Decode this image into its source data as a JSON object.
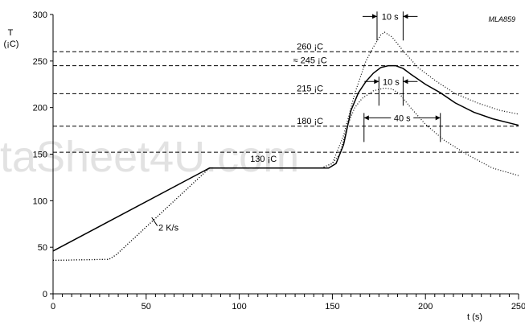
{
  "watermark": "taSheet4U.com",
  "chart_data": {
    "type": "line",
    "code": "MLA859",
    "ylabel": "T",
    "yunit": "(¡C)",
    "xlabel": "t (s)",
    "xlim": [
      0,
      250
    ],
    "ylim": [
      0,
      300
    ],
    "x_ticks": [
      0,
      50,
      100,
      150,
      200,
      250
    ],
    "y_ticks": [
      0,
      50,
      100,
      150,
      200,
      250,
      300
    ],
    "x_minor_step": 5,
    "series": [
      {
        "style": "solid",
        "points": [
          [
            0,
            46
          ],
          [
            84,
            135
          ],
          [
            148,
            135
          ],
          [
            152,
            140
          ],
          [
            156,
            160
          ],
          [
            160,
            197
          ],
          [
            164,
            216
          ],
          [
            168,
            228
          ],
          [
            172,
            237
          ],
          [
            176,
            243
          ],
          [
            180,
            245
          ],
          [
            184,
            245
          ],
          [
            188,
            242
          ],
          [
            192,
            236
          ],
          [
            200,
            225
          ],
          [
            208,
            216
          ],
          [
            216,
            205
          ],
          [
            226,
            195
          ],
          [
            236,
            188
          ],
          [
            250,
            181
          ]
        ]
      },
      {
        "style": "dotted",
        "points": [
          [
            0,
            36
          ],
          [
            30,
            37
          ],
          [
            34,
            42
          ],
          [
            84,
            135
          ],
          [
            144,
            135
          ],
          [
            150,
            140
          ],
          [
            156,
            170
          ],
          [
            162,
            215
          ],
          [
            168,
            250
          ],
          [
            172,
            265
          ],
          [
            176,
            278
          ],
          [
            178,
            281
          ],
          [
            182,
            276
          ],
          [
            188,
            261
          ],
          [
            196,
            243
          ],
          [
            206,
            228
          ],
          [
            216,
            215
          ],
          [
            228,
            205
          ],
          [
            240,
            197
          ],
          [
            250,
            193
          ]
        ]
      },
      {
        "style": "dotted",
        "points": [
          [
            0,
            36
          ],
          [
            30,
            37
          ],
          [
            34,
            42
          ],
          [
            84,
            135
          ],
          [
            144,
            135
          ],
          [
            150,
            140
          ],
          [
            154,
            150
          ],
          [
            158,
            180
          ],
          [
            162,
            200
          ],
          [
            166,
            210
          ],
          [
            172,
            218
          ],
          [
            178,
            221
          ],
          [
            182,
            220
          ],
          [
            186,
            215
          ],
          [
            192,
            200
          ],
          [
            200,
            182
          ],
          [
            210,
            165
          ],
          [
            222,
            150
          ],
          [
            236,
            135
          ],
          [
            250,
            127
          ]
        ]
      }
    ],
    "reference_lines": [
      {
        "y": 260,
        "label": "260 ¡C"
      },
      {
        "y": 245,
        "label": "≈ 245 ¡C"
      },
      {
        "y": 215,
        "label": "215 ¡C"
      },
      {
        "y": 180,
        "label": "180 ¡C"
      },
      {
        "y": 152,
        "label": ""
      }
    ],
    "annotations": [
      {
        "text": "130 ¡C",
        "x": 113,
        "y": 142
      },
      {
        "text": "2 K/s",
        "x": 62,
        "y": 68
      }
    ],
    "intervals": [
      {
        "label": "10 s",
        "x1": 174,
        "x2": 188,
        "y": 298
      },
      {
        "label": "10 s",
        "x1": 175,
        "x2": 188,
        "y": 228
      },
      {
        "label": "40 s",
        "x1": 167,
        "x2": 208,
        "y": 189
      }
    ]
  }
}
